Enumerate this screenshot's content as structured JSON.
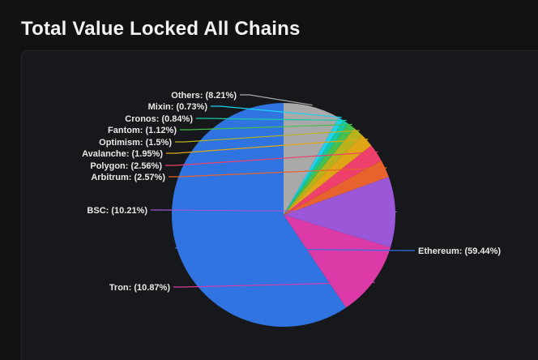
{
  "page": {
    "title": "Total Value Locked All Chains"
  },
  "chart_data": {
    "type": "pie",
    "title": "Total Value Locked All Chains",
    "slices": [
      {
        "name": "Ethereum",
        "value": 59.44,
        "label": "Ethereum: (59.44%)",
        "color": "#2f74e0"
      },
      {
        "name": "Tron",
        "value": 10.87,
        "label": "Tron: (10.87%)",
        "color": "#dc3aa6"
      },
      {
        "name": "BSC",
        "value": 10.21,
        "label": "BSC: (10.21%)",
        "color": "#9a57d8"
      },
      {
        "name": "Arbitrum",
        "value": 2.57,
        "label": "Arbitrum: (2.57%)",
        "color": "#e8622d"
      },
      {
        "name": "Polygon",
        "value": 2.56,
        "label": "Polygon: (2.56%)",
        "color": "#ee3f6d"
      },
      {
        "name": "Avalanche",
        "value": 1.95,
        "label": "Avalanche: (1.95%)",
        "color": "#e0a516"
      },
      {
        "name": "Optimism",
        "value": 1.5,
        "label": "Optimism: (1.5%)",
        "color": "#b8b31c"
      },
      {
        "name": "Fantom",
        "value": 1.12,
        "label": "Fantom: (1.12%)",
        "color": "#48c04d"
      },
      {
        "name": "Cronos",
        "value": 0.84,
        "label": "Cronos: (0.84%)",
        "color": "#16c9a4"
      },
      {
        "name": "Mixin",
        "value": 0.73,
        "label": "Mixin: (0.73%)",
        "color": "#1ed3f2"
      },
      {
        "name": "Others",
        "value": 8.21,
        "label": "Others: (8.21%)",
        "color": "#a9a9a9"
      }
    ],
    "direction": "counterclockwise",
    "start_angle": "top"
  }
}
